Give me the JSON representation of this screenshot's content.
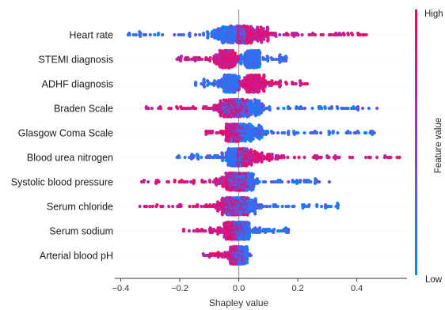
{
  "chart_data": {
    "type": "scatter",
    "subtype": "shap-beeswarm",
    "xlabel": "Shapley value",
    "xlim": [
      -0.42,
      0.57
    ],
    "xticks": [
      -0.4,
      -0.2,
      0.0,
      0.2,
      0.4
    ],
    "xtick_labels": [
      "−0.4",
      "−0.2",
      "0.0",
      "0.2",
      "0.4"
    ],
    "colorbar": {
      "label": "Feature value",
      "high": "High",
      "low": "Low",
      "colors": [
        "#008bfb",
        "#ff0052"
      ]
    },
    "features": [
      {
        "name": "Heart rate",
        "high_color_side": "right",
        "low": {
          "min": -0.38,
          "max": 0.02,
          "center": -0.02,
          "spread": 0.08
        },
        "high": {
          "min": 0.0,
          "max": 0.44,
          "center": 0.04,
          "spread": 0.09
        }
      },
      {
        "name": "STEMI diagnosis",
        "high_color_side": "left",
        "low": {
          "min": 0.0,
          "max": 0.17,
          "center": 0.05,
          "spread": 0.03
        },
        "high": {
          "min": -0.21,
          "max": 0.0,
          "center": -0.04,
          "spread": 0.04
        }
      },
      {
        "name": "ADHF diagnosis",
        "high_color_side": "right",
        "low": {
          "min": -0.15,
          "max": 0.0,
          "center": -0.03,
          "spread": 0.03
        },
        "high": {
          "min": 0.0,
          "max": 0.23,
          "center": 0.05,
          "spread": 0.04
        }
      },
      {
        "name": "Braden Scale",
        "high_color_side": "left",
        "low": {
          "min": -0.05,
          "max": 0.47,
          "center": 0.02,
          "spread": 0.08
        },
        "high": {
          "min": -0.32,
          "max": 0.03,
          "center": -0.02,
          "spread": 0.07
        }
      },
      {
        "name": "Glasgow Coma Scale",
        "high_color_side": "left",
        "low": {
          "min": -0.02,
          "max": 0.46,
          "center": 0.02,
          "spread": 0.07
        },
        "high": {
          "min": -0.12,
          "max": 0.02,
          "center": -0.02,
          "spread": 0.03
        }
      },
      {
        "name": "Blood urea nitrogen",
        "high_color_side": "right",
        "low": {
          "min": -0.21,
          "max": 0.03,
          "center": -0.01,
          "spread": 0.04
        },
        "high": {
          "min": 0.0,
          "max": 0.55,
          "center": 0.02,
          "spread": 0.1
        }
      },
      {
        "name": "Systolic blood pressure",
        "high_color_side": "left",
        "low": {
          "min": -0.03,
          "max": 0.31,
          "center": 0.01,
          "spread": 0.05
        },
        "high": {
          "min": -0.33,
          "max": 0.03,
          "center": -0.01,
          "spread": 0.07
        }
      },
      {
        "name": "Serum chloride",
        "high_color_side": "left",
        "low": {
          "min": -0.05,
          "max": 0.34,
          "center": 0.01,
          "spread": 0.06
        },
        "high": {
          "min": -0.35,
          "max": 0.03,
          "center": -0.02,
          "spread": 0.07
        }
      },
      {
        "name": "Serum sodium",
        "high_color_side": "left",
        "low": {
          "min": -0.02,
          "max": 0.17,
          "center": 0.01,
          "spread": 0.04
        },
        "high": {
          "min": -0.2,
          "max": 0.02,
          "center": -0.02,
          "spread": 0.04
        }
      },
      {
        "name": "Arterial blood pH",
        "high_color_side": "left",
        "low": {
          "min": -0.02,
          "max": 0.04,
          "center": 0.0,
          "spread": 0.015
        },
        "high": {
          "min": -0.12,
          "max": 0.02,
          "center": -0.01,
          "spread": 0.025
        }
      }
    ]
  }
}
